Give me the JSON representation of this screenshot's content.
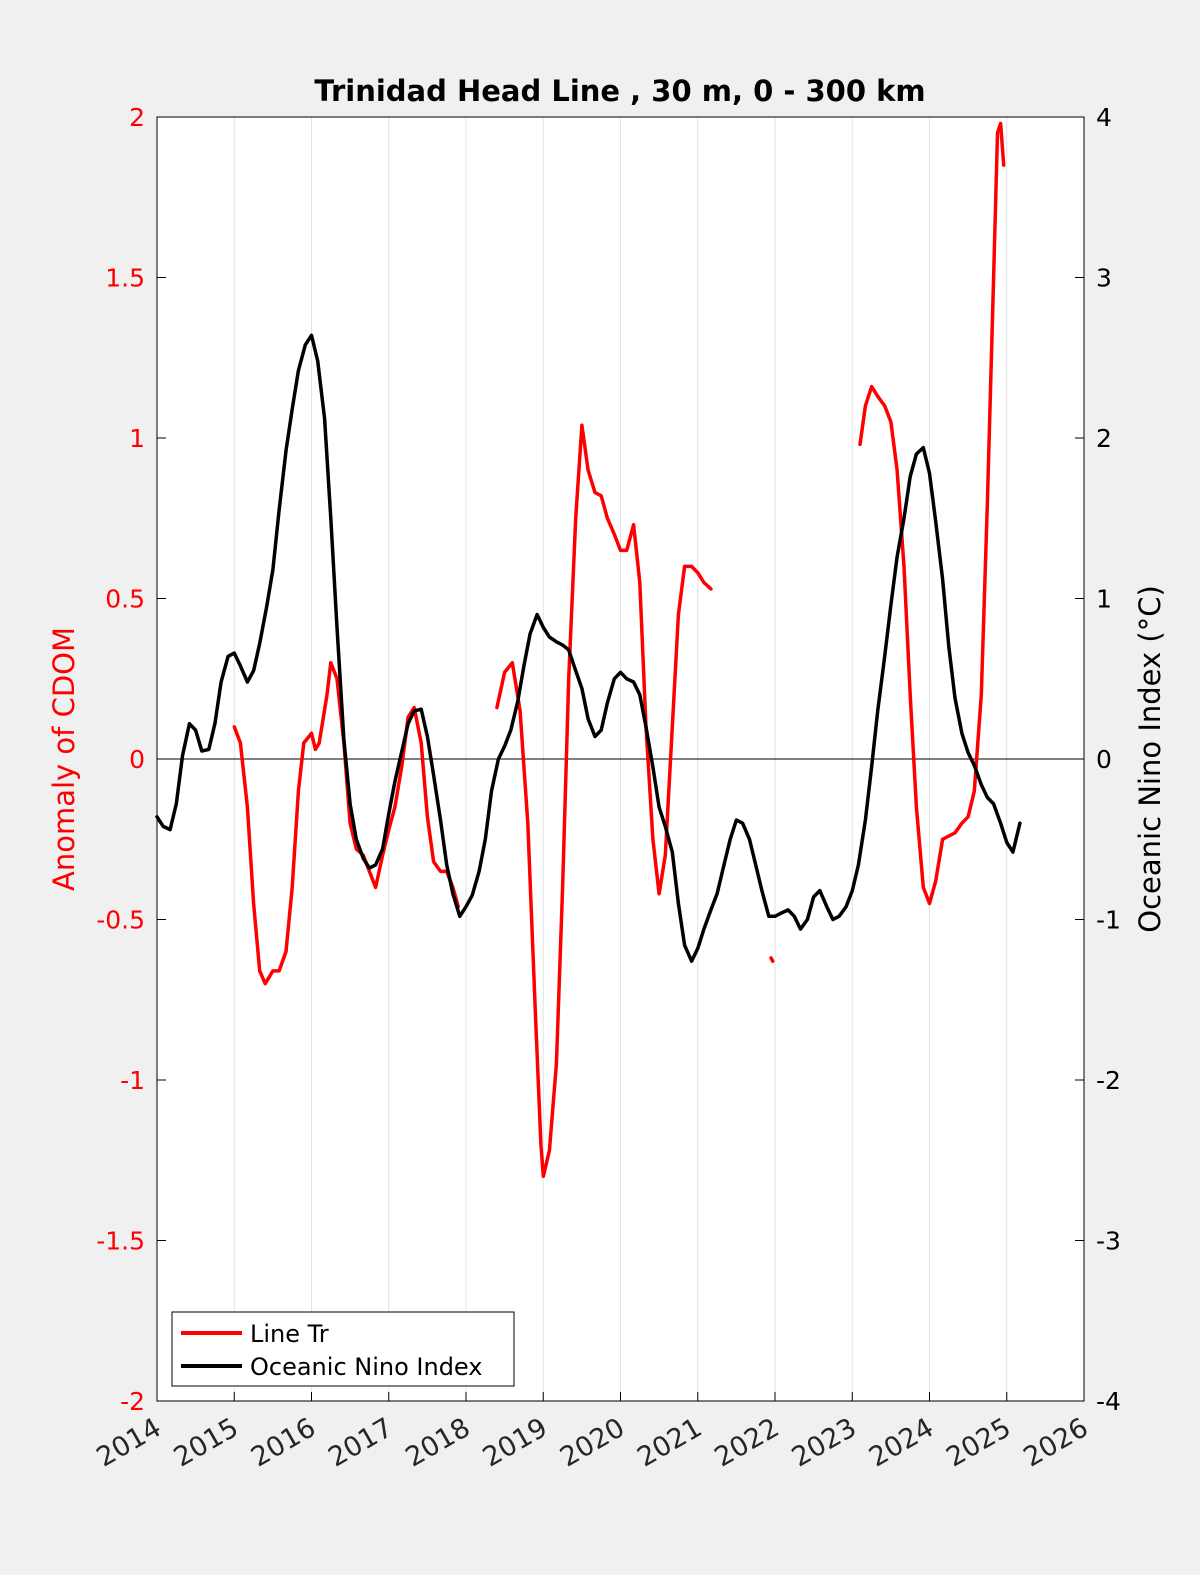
{
  "chart_data": {
    "type": "line",
    "title": "Trinidad Head Line , 30 m, 0 - 300 km",
    "xlabel": "",
    "ylabel_left": "Anomaly of CDOM",
    "ylabel_right": "Oceanic Nino Index (°C)",
    "xlim": [
      2014,
      2026
    ],
    "ylim_left": [
      -2,
      2
    ],
    "ylim_right": [
      -4,
      4
    ],
    "x_ticks": [
      "2014",
      "2015",
      "2016",
      "2017",
      "2018",
      "2019",
      "2020",
      "2021",
      "2022",
      "2023",
      "2024",
      "2025",
      "2026"
    ],
    "y_left_ticks": [
      "2",
      "1.5",
      "1",
      "0.5",
      "0",
      "-0.5",
      "-1",
      "-1.5",
      "-2"
    ],
    "y_right_ticks": [
      "4",
      "3",
      "2",
      "1",
      "0",
      "-1",
      "-2",
      "-3",
      "-4"
    ],
    "grid": "vertical",
    "legend_position": "bottom-left",
    "colors": {
      "line_tr": "#ff0000",
      "oni": "#000000",
      "left_axis": "#ff0000",
      "right_axis": "#000000"
    },
    "series": [
      {
        "name": "Line Tr",
        "axis": "left",
        "segments": [
          [
            [
              2015.0,
              0.1
            ],
            [
              2015.08,
              0.05
            ],
            [
              2015.17,
              -0.15
            ],
            [
              2015.25,
              -0.45
            ],
            [
              2015.33,
              -0.66
            ],
            [
              2015.4,
              -0.7
            ],
            [
              2015.5,
              -0.66
            ],
            [
              2015.58,
              -0.66
            ],
            [
              2015.67,
              -0.6
            ],
            [
              2015.75,
              -0.4
            ],
            [
              2015.83,
              -0.1
            ],
            [
              2015.9,
              0.05
            ],
            [
              2016.0,
              0.08
            ],
            [
              2016.05,
              0.03
            ],
            [
              2016.1,
              0.05
            ],
            [
              2016.2,
              0.2
            ],
            [
              2016.25,
              0.3
            ],
            [
              2016.33,
              0.25
            ],
            [
              2016.42,
              0.05
            ],
            [
              2016.5,
              -0.2
            ],
            [
              2016.58,
              -0.28
            ],
            [
              2016.67,
              -0.3
            ],
            [
              2016.75,
              -0.35
            ],
            [
              2016.83,
              -0.4
            ],
            [
              2016.92,
              -0.3
            ],
            [
              2017.0,
              -0.22
            ],
            [
              2017.08,
              -0.15
            ],
            [
              2017.17,
              -0.02
            ],
            [
              2017.25,
              0.13
            ],
            [
              2017.33,
              0.16
            ],
            [
              2017.42,
              0.05
            ],
            [
              2017.5,
              -0.18
            ],
            [
              2017.58,
              -0.32
            ],
            [
              2017.67,
              -0.35
            ],
            [
              2017.75,
              -0.35
            ],
            [
              2017.83,
              -0.4
            ],
            [
              2017.9,
              -0.46
            ]
          ],
          [
            [
              2018.4,
              0.16
            ],
            [
              2018.5,
              0.27
            ],
            [
              2018.6,
              0.3
            ],
            [
              2018.7,
              0.15
            ],
            [
              2018.8,
              -0.2
            ],
            [
              2018.9,
              -0.8
            ],
            [
              2018.97,
              -1.2
            ],
            [
              2019.0,
              -1.3
            ],
            [
              2019.08,
              -1.22
            ],
            [
              2019.17,
              -0.95
            ],
            [
              2019.25,
              -0.4
            ],
            [
              2019.33,
              0.25
            ],
            [
              2019.42,
              0.75
            ],
            [
              2019.5,
              1.04
            ],
            [
              2019.58,
              0.9
            ],
            [
              2019.67,
              0.83
            ],
            [
              2019.75,
              0.82
            ],
            [
              2019.83,
              0.75
            ],
            [
              2019.92,
              0.7
            ],
            [
              2020.0,
              0.65
            ],
            [
              2020.08,
              0.65
            ],
            [
              2020.17,
              0.73
            ],
            [
              2020.25,
              0.55
            ],
            [
              2020.33,
              0.1
            ],
            [
              2020.42,
              -0.25
            ],
            [
              2020.5,
              -0.42
            ],
            [
              2020.58,
              -0.3
            ],
            [
              2020.67,
              0.1
            ],
            [
              2020.75,
              0.45
            ],
            [
              2020.83,
              0.6
            ],
            [
              2020.92,
              0.6
            ],
            [
              2021.0,
              0.58
            ],
            [
              2021.08,
              0.55
            ],
            [
              2021.17,
              0.53
            ]
          ],
          [
            [
              2021.95,
              -0.62
            ],
            [
              2021.97,
              -0.63
            ]
          ],
          [
            [
              2023.1,
              0.98
            ],
            [
              2023.17,
              1.1
            ],
            [
              2023.25,
              1.16
            ],
            [
              2023.33,
              1.13
            ],
            [
              2023.42,
              1.1
            ],
            [
              2023.5,
              1.05
            ],
            [
              2023.58,
              0.9
            ],
            [
              2023.67,
              0.6
            ],
            [
              2023.75,
              0.2
            ],
            [
              2023.83,
              -0.15
            ],
            [
              2023.92,
              -0.4
            ],
            [
              2024.0,
              -0.45
            ],
            [
              2024.08,
              -0.38
            ],
            [
              2024.17,
              -0.25
            ],
            [
              2024.25,
              -0.24
            ],
            [
              2024.33,
              -0.23
            ],
            [
              2024.42,
              -0.2
            ],
            [
              2024.5,
              -0.18
            ],
            [
              2024.58,
              -0.1
            ],
            [
              2024.67,
              0.2
            ],
            [
              2024.75,
              0.8
            ],
            [
              2024.83,
              1.5
            ],
            [
              2024.88,
              1.95
            ],
            [
              2024.92,
              1.98
            ],
            [
              2024.96,
              1.85
            ]
          ]
        ]
      },
      {
        "name": "Oceanic Nino Index",
        "axis": "right",
        "segments": [
          [
            [
              2014.0,
              -0.36
            ],
            [
              2014.08,
              -0.42
            ],
            [
              2014.17,
              -0.44
            ],
            [
              2014.25,
              -0.28
            ],
            [
              2014.33,
              0.02
            ],
            [
              2014.42,
              0.22
            ],
            [
              2014.5,
              0.18
            ],
            [
              2014.58,
              0.05
            ],
            [
              2014.67,
              0.06
            ],
            [
              2014.75,
              0.22
            ],
            [
              2014.83,
              0.48
            ],
            [
              2014.92,
              0.64
            ],
            [
              2015.0,
              0.66
            ],
            [
              2015.08,
              0.58
            ],
            [
              2015.17,
              0.48
            ],
            [
              2015.25,
              0.55
            ],
            [
              2015.33,
              0.72
            ],
            [
              2015.42,
              0.95
            ],
            [
              2015.5,
              1.18
            ],
            [
              2015.58,
              1.55
            ],
            [
              2015.67,
              1.92
            ],
            [
              2015.75,
              2.18
            ],
            [
              2015.83,
              2.42
            ],
            [
              2015.92,
              2.58
            ],
            [
              2016.0,
              2.64
            ],
            [
              2016.08,
              2.48
            ],
            [
              2016.17,
              2.12
            ],
            [
              2016.25,
              1.5
            ],
            [
              2016.33,
              0.82
            ],
            [
              2016.42,
              0.12
            ],
            [
              2016.5,
              -0.28
            ],
            [
              2016.58,
              -0.5
            ],
            [
              2016.67,
              -0.62
            ],
            [
              2016.75,
              -0.68
            ],
            [
              2016.83,
              -0.66
            ],
            [
              2016.92,
              -0.56
            ],
            [
              2017.0,
              -0.34
            ],
            [
              2017.08,
              -0.14
            ],
            [
              2017.17,
              0.05
            ],
            [
              2017.25,
              0.22
            ],
            [
              2017.33,
              0.3
            ],
            [
              2017.42,
              0.31
            ],
            [
              2017.5,
              0.14
            ],
            [
              2017.58,
              -0.1
            ],
            [
              2017.67,
              -0.38
            ],
            [
              2017.75,
              -0.66
            ],
            [
              2017.83,
              -0.84
            ],
            [
              2017.92,
              -0.98
            ],
            [
              2018.0,
              -0.92
            ],
            [
              2018.08,
              -0.85
            ],
            [
              2018.17,
              -0.7
            ],
            [
              2018.25,
              -0.5
            ],
            [
              2018.33,
              -0.2
            ],
            [
              2018.42,
              0.0
            ],
            [
              2018.5,
              0.08
            ],
            [
              2018.58,
              0.18
            ],
            [
              2018.67,
              0.36
            ],
            [
              2018.75,
              0.58
            ],
            [
              2018.83,
              0.78
            ],
            [
              2018.92,
              0.9
            ],
            [
              2019.0,
              0.82
            ],
            [
              2019.08,
              0.76
            ],
            [
              2019.17,
              0.73
            ],
            [
              2019.25,
              0.71
            ],
            [
              2019.33,
              0.68
            ],
            [
              2019.42,
              0.55
            ],
            [
              2019.5,
              0.44
            ],
            [
              2019.58,
              0.25
            ],
            [
              2019.67,
              0.14
            ],
            [
              2019.75,
              0.18
            ],
            [
              2019.83,
              0.35
            ],
            [
              2019.92,
              0.5
            ],
            [
              2020.0,
              0.54
            ],
            [
              2020.08,
              0.5
            ],
            [
              2020.17,
              0.48
            ],
            [
              2020.25,
              0.4
            ],
            [
              2020.33,
              0.2
            ],
            [
              2020.42,
              -0.05
            ],
            [
              2020.5,
              -0.3
            ],
            [
              2020.58,
              -0.42
            ],
            [
              2020.67,
              -0.58
            ],
            [
              2020.75,
              -0.9
            ],
            [
              2020.83,
              -1.16
            ],
            [
              2020.92,
              -1.26
            ],
            [
              2021.0,
              -1.18
            ],
            [
              2021.08,
              -1.06
            ],
            [
              2021.17,
              -0.94
            ],
            [
              2021.25,
              -0.84
            ],
            [
              2021.33,
              -0.68
            ],
            [
              2021.42,
              -0.5
            ],
            [
              2021.5,
              -0.38
            ],
            [
              2021.58,
              -0.4
            ],
            [
              2021.67,
              -0.5
            ],
            [
              2021.75,
              -0.66
            ],
            [
              2021.83,
              -0.82
            ],
            [
              2021.92,
              -0.98
            ],
            [
              2022.0,
              -0.98
            ],
            [
              2022.08,
              -0.96
            ],
            [
              2022.17,
              -0.94
            ],
            [
              2022.25,
              -0.98
            ],
            [
              2022.33,
              -1.06
            ],
            [
              2022.42,
              -1.0
            ],
            [
              2022.5,
              -0.86
            ],
            [
              2022.58,
              -0.82
            ],
            [
              2022.67,
              -0.92
            ],
            [
              2022.75,
              -1.0
            ],
            [
              2022.83,
              -0.98
            ],
            [
              2022.92,
              -0.92
            ],
            [
              2023.0,
              -0.82
            ],
            [
              2023.08,
              -0.66
            ],
            [
              2023.17,
              -0.38
            ],
            [
              2023.25,
              -0.05
            ],
            [
              2023.33,
              0.3
            ],
            [
              2023.42,
              0.64
            ],
            [
              2023.5,
              0.96
            ],
            [
              2023.58,
              1.26
            ],
            [
              2023.67,
              1.5
            ],
            [
              2023.75,
              1.76
            ],
            [
              2023.83,
              1.9
            ],
            [
              2023.92,
              1.94
            ],
            [
              2024.0,
              1.78
            ],
            [
              2024.08,
              1.48
            ],
            [
              2024.17,
              1.12
            ],
            [
              2024.25,
              0.7
            ],
            [
              2024.33,
              0.38
            ],
            [
              2024.42,
              0.16
            ],
            [
              2024.5,
              0.04
            ],
            [
              2024.58,
              -0.04
            ],
            [
              2024.67,
              -0.16
            ],
            [
              2024.75,
              -0.24
            ],
            [
              2024.83,
              -0.28
            ],
            [
              2024.92,
              -0.4
            ],
            [
              2025.0,
              -0.52
            ],
            [
              2025.08,
              -0.58
            ],
            [
              2025.17,
              -0.4
            ]
          ]
        ]
      }
    ]
  }
}
